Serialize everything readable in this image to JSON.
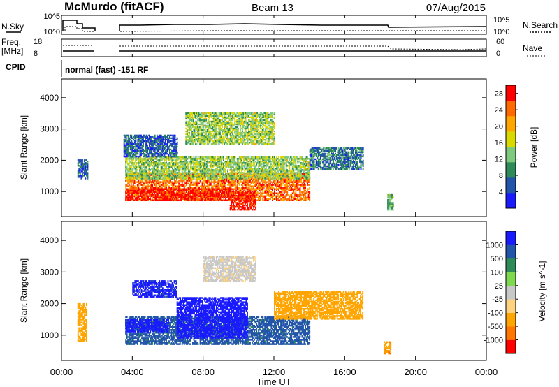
{
  "header": {
    "station": "McMurdo (fitACF)",
    "beam": "Beam 13",
    "date": "07/Aug/2015",
    "cpid_text": "normal (fast) -151 RF"
  },
  "strip_labels": {
    "nsky": "N.Sky",
    "nsearch": "N.Search",
    "freq_line1": "Freq.",
    "freq_line2": "[MHz]",
    "nave": "Nave",
    "cpid": "CPID",
    "noise_ticks_left": [
      "10^5",
      "10^0"
    ],
    "noise_ticks_right": [
      "10^5",
      "10^0"
    ],
    "freq_ticks_left": [
      "18",
      "8"
    ],
    "nave_ticks_right": [
      "60",
      "0"
    ]
  },
  "x_axis": {
    "label": "Time UT",
    "ticks": [
      "00:00",
      "04:00",
      "08:00",
      "12:00",
      "16:00",
      "20:00",
      "00:00"
    ]
  },
  "colors": {
    "power_scale": [
      "#1a1aff",
      "#2255aa",
      "#2e8b57",
      "#7fc97f",
      "#d9d900",
      "#ffa500",
      "#ff6a00",
      "#ff0000"
    ],
    "velocity_scale": [
      "#ff0000",
      "#ff7700",
      "#ffa500",
      "#ffd27f",
      "#c8c8c8",
      "#7fd94f",
      "#2e8b57",
      "#2255aa",
      "#1a1aff"
    ]
  },
  "chart_data": [
    {
      "type": "heatmap",
      "panel": "power",
      "ylabel": "Slant Range [km]",
      "y_ticks": [
        "1000",
        "2000",
        "3000",
        "4000"
      ],
      "ylim": [
        200,
        4600
      ],
      "xlim_hours": [
        0,
        24
      ],
      "colorbar_label": "Power [dB]",
      "colorbar_ticks": [
        "4",
        "8",
        "12",
        "16",
        "20",
        "24",
        "28"
      ],
      "colorbar_range": [
        0,
        30
      ],
      "regions": [
        {
          "t": [
            3.6,
            14.0
          ],
          "r": [
            700,
            1600
          ],
          "value": 24
        },
        {
          "t": [
            3.6,
            9.5
          ],
          "r": [
            700,
            1100
          ],
          "value": 28
        },
        {
          "t": [
            9.5,
            11.0
          ],
          "r": [
            400,
            1000
          ],
          "value": 28
        },
        {
          "t": [
            3.6,
            14.0
          ],
          "r": [
            1400,
            2100
          ],
          "value": 14
        },
        {
          "t": [
            3.5,
            6.5
          ],
          "r": [
            2100,
            2800
          ],
          "value": 6
        },
        {
          "t": [
            7.0,
            12.0
          ],
          "r": [
            2500,
            3500
          ],
          "value": 14
        },
        {
          "t": [
            0.9,
            1.5
          ],
          "r": [
            1400,
            2000
          ],
          "value": 6
        },
        {
          "t": [
            14.0,
            17.0
          ],
          "r": [
            1700,
            2400
          ],
          "value": 8
        },
        {
          "t": [
            18.4,
            18.7
          ],
          "r": [
            400,
            900
          ],
          "value": 12
        }
      ]
    },
    {
      "type": "heatmap",
      "panel": "velocity",
      "ylabel": "Slant Range [km]",
      "y_ticks": [
        "1000",
        "2000",
        "3000",
        "4000"
      ],
      "ylim": [
        200,
        4600
      ],
      "xlim_hours": [
        0,
        24
      ],
      "colorbar_label": "Velocity [m s^-1]",
      "colorbar_ticks": [
        "1000",
        "500",
        "100",
        "25",
        "-25",
        "-100",
        "-500",
        "-1000"
      ],
      "colorbar_range": [
        -1000,
        1000
      ],
      "regions": [
        {
          "t": [
            3.6,
            14.0
          ],
          "r": [
            700,
            1600
          ],
          "value": 150
        },
        {
          "t": [
            6.5,
            10.5
          ],
          "r": [
            900,
            2200
          ],
          "value": 900
        },
        {
          "t": [
            3.6,
            6.0
          ],
          "r": [
            1100,
            1500
          ],
          "value": 800
        },
        {
          "t": [
            12.0,
            17.0
          ],
          "r": [
            1500,
            2400
          ],
          "value": -300
        },
        {
          "t": [
            0.9,
            1.4
          ],
          "r": [
            800,
            2000
          ],
          "value": -300
        },
        {
          "t": [
            4.0,
            6.5
          ],
          "r": [
            2200,
            2700
          ],
          "value": 700
        },
        {
          "t": [
            8.0,
            11.0
          ],
          "r": [
            2700,
            3500
          ],
          "value": -20
        },
        {
          "t": [
            18.2,
            18.6
          ],
          "r": [
            400,
            800
          ],
          "value": -400
        }
      ]
    }
  ]
}
